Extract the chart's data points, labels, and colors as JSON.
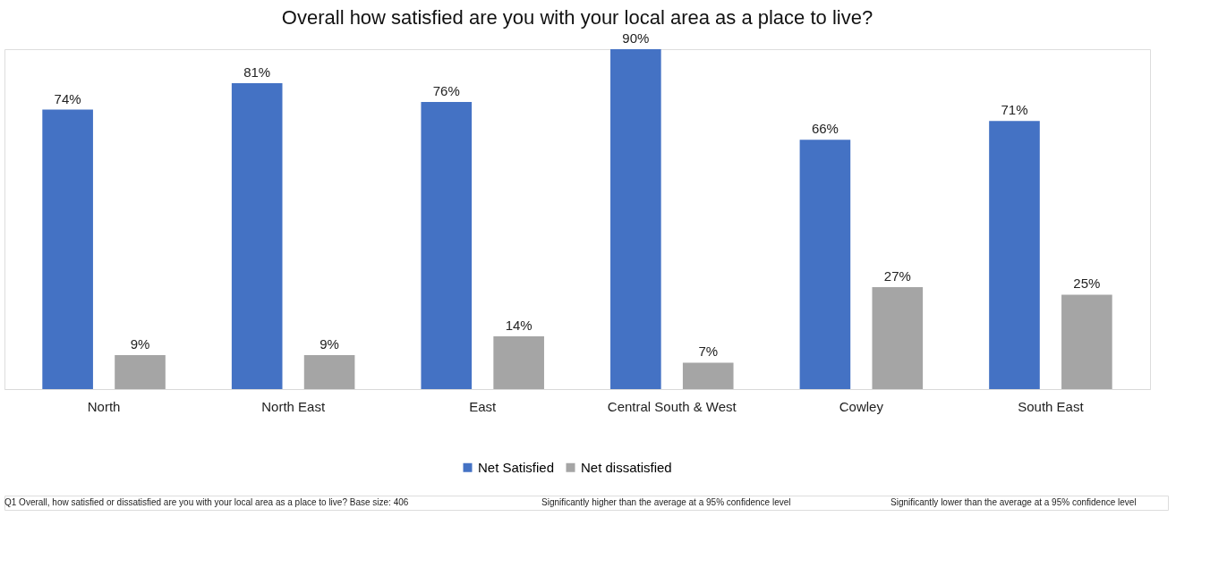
{
  "chart_data": {
    "type": "bar",
    "title": "Overall how satisfied are you with your local area as a place to live?",
    "categories": [
      "North",
      "North East",
      "East",
      "Central South & West",
      "Cowley",
      "South East"
    ],
    "series": [
      {
        "name": "Net Satisfied",
        "color": "#4472c4",
        "values": [
          74,
          81,
          76,
          90,
          66,
          71
        ],
        "value_labels": [
          "74%",
          "81%",
          "76%",
          "90%",
          "66%",
          "71%"
        ]
      },
      {
        "name": "Net dissatisfied",
        "color": "#a5a5a5",
        "values": [
          9,
          9,
          14,
          7,
          27,
          25
        ],
        "value_labels": [
          "9%",
          "9%",
          "14%",
          "7%",
          "27%",
          "25%"
        ]
      }
    ],
    "legend": "bottom",
    "grid": false,
    "annotations": [
      "Q1 Overall, how satisfied or dissatisfied are you with your local area as a place to live?  Base size: 406",
      "Significantly higher than the average at a 95% confidence level",
      "Significantly lower than the average at a 95% confidence level"
    ]
  }
}
